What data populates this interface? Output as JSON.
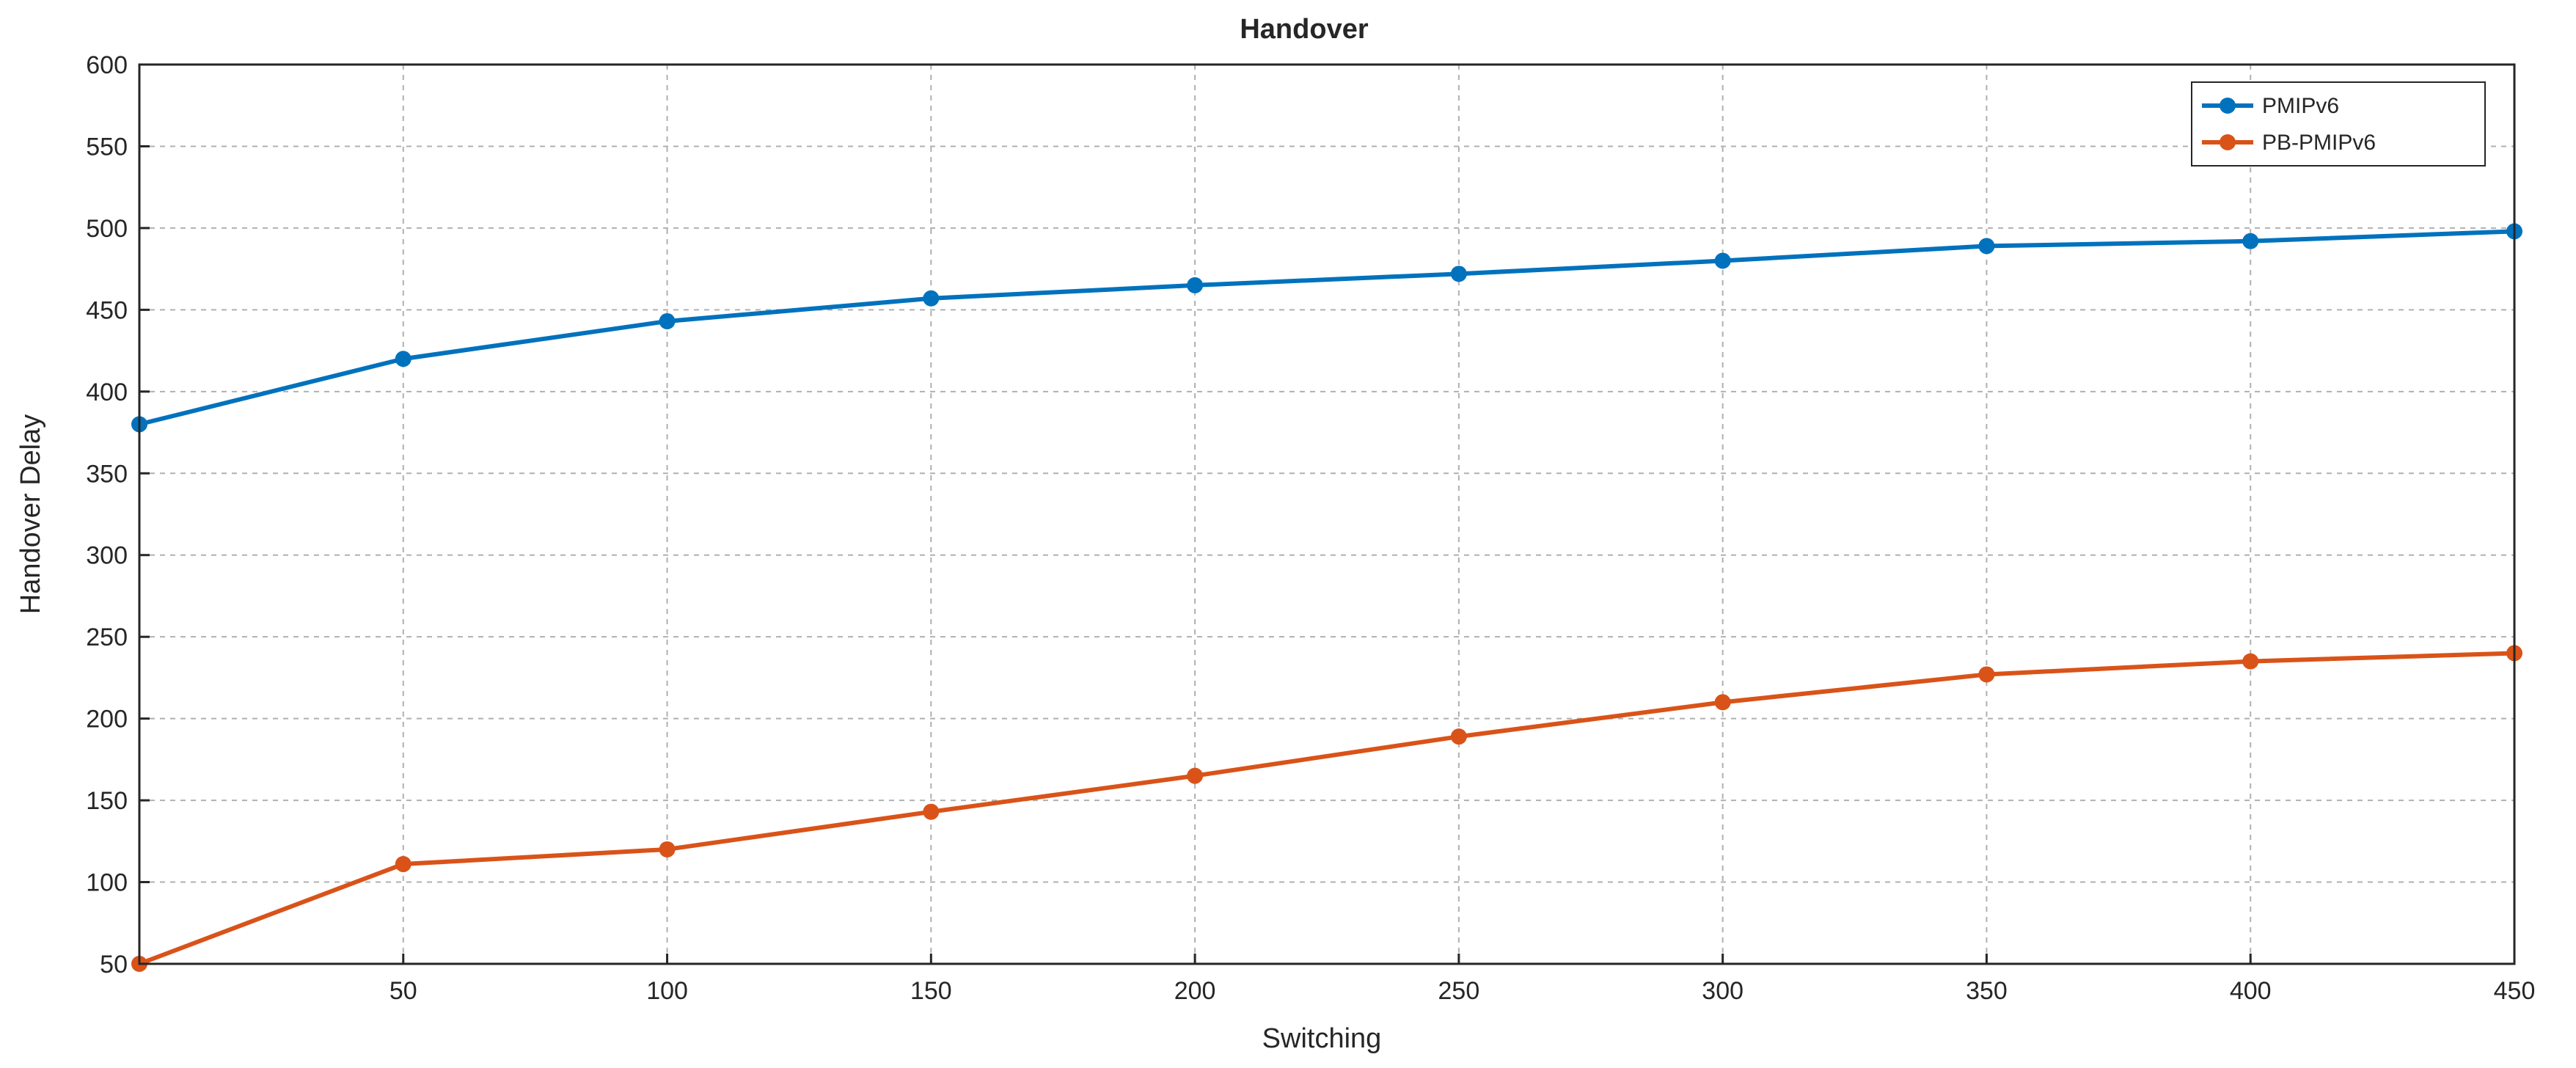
{
  "chart_data": {
    "type": "line",
    "title": "Handover",
    "xlabel": "Switching",
    "ylabel": "Handover Delay",
    "xlim": [
      0,
      450
    ],
    "ylim": [
      50,
      600
    ],
    "x": [
      0,
      50,
      100,
      150,
      200,
      250,
      300,
      350,
      400,
      450
    ],
    "xticks": [
      50,
      100,
      150,
      200,
      250,
      300,
      350,
      400,
      450
    ],
    "yticks": [
      50,
      100,
      150,
      200,
      250,
      300,
      350,
      400,
      450,
      500,
      550,
      600
    ],
    "grid": true,
    "legend_position": "top-right",
    "series": [
      {
        "name": "PMIPv6",
        "color": "#0072BD",
        "values": [
          380,
          420,
          443,
          457,
          465,
          472,
          480,
          489,
          492,
          498
        ]
      },
      {
        "name": "PB-PMIPv6",
        "color": "#D95319",
        "values": [
          50,
          111,
          120,
          143,
          165,
          189,
          210,
          227,
          235,
          240
        ]
      }
    ]
  }
}
